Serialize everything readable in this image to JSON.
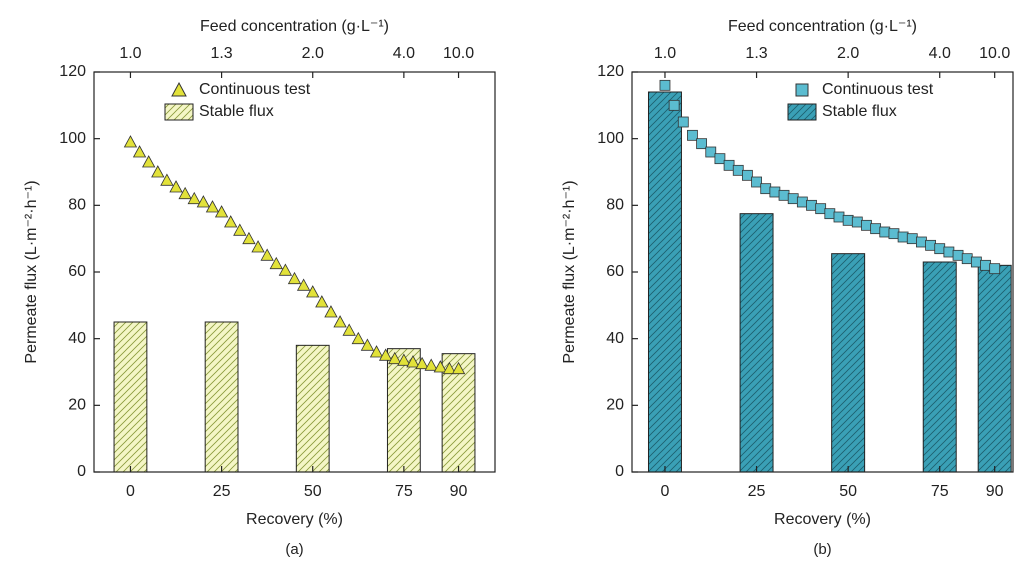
{
  "chart_data": [
    {
      "type": "bar",
      "panel_label": "(a)",
      "xlabel": "Recovery (%)",
      "ylabel": "Permeate flux (L·m⁻²·h⁻¹)",
      "x2label": "Feed concentration (g·L⁻¹)",
      "xlim": [
        -10,
        100
      ],
      "xticks": [
        0,
        25,
        50,
        75,
        90
      ],
      "x2ticks": [
        {
          "value": 0,
          "label": "1.0"
        },
        {
          "value": 25,
          "label": "1.3"
        },
        {
          "value": 50,
          "label": "2.0"
        },
        {
          "value": 75,
          "label": "4.0"
        },
        {
          "value": 90,
          "label": "10.0"
        }
      ],
      "ylim": [
        0,
        120
      ],
      "yticks": [
        0,
        20,
        40,
        60,
        80,
        100,
        120
      ],
      "series": [
        {
          "name": "Continuous test",
          "type": "scatter",
          "marker": "triangle",
          "color": "#e2e23a",
          "x": [
            0,
            2.5,
            5,
            7.5,
            10,
            12.5,
            15,
            17.5,
            20,
            22.5,
            25,
            27.5,
            30,
            32.5,
            35,
            37.5,
            40,
            42.5,
            45,
            47.5,
            50,
            52.5,
            55,
            57.5,
            60,
            62.5,
            65,
            67.5,
            70,
            72.5,
            75,
            77.5,
            80,
            82.5,
            85,
            87.5,
            90
          ],
          "values": [
            99,
            96,
            93,
            90,
            87.5,
            85.5,
            83.5,
            82,
            81,
            79.5,
            78,
            75,
            72.5,
            70,
            67.5,
            65,
            62.5,
            60.5,
            58,
            56,
            54,
            51,
            48,
            45,
            42.5,
            40,
            38,
            36,
            35,
            34,
            33.5,
            33,
            32.5,
            32,
            31.5,
            31,
            31
          ]
        },
        {
          "name": "Stable flux",
          "type": "bar",
          "color": "#f4f6c6",
          "hatch": "#8a9a3a",
          "x": [
            0,
            25,
            50,
            75,
            90
          ],
          "values": [
            45,
            45,
            38,
            37,
            35.5
          ]
        }
      ]
    },
    {
      "type": "bar",
      "panel_label": "(b)",
      "xlabel": "Recovery (%)",
      "ylabel": "Permeate flux (L·m⁻²·h⁻¹)",
      "x2label": "Feed concentration (g·L⁻¹)",
      "xlim": [
        -9,
        95
      ],
      "xticks": [
        0,
        25,
        50,
        75,
        90
      ],
      "x2ticks": [
        {
          "value": 0,
          "label": "1.0"
        },
        {
          "value": 25,
          "label": "1.3"
        },
        {
          "value": 50,
          "label": "2.0"
        },
        {
          "value": 75,
          "label": "4.0"
        },
        {
          "value": 90,
          "label": "10.0"
        }
      ],
      "ylim": [
        0,
        120
      ],
      "yticks": [
        0,
        20,
        40,
        60,
        80,
        100,
        120
      ],
      "series": [
        {
          "name": "Continuous test",
          "type": "scatter",
          "marker": "square",
          "color": "#5bbcd0",
          "x": [
            0,
            2.5,
            5,
            7.5,
            10,
            12.5,
            15,
            17.5,
            20,
            22.5,
            25,
            27.5,
            30,
            32.5,
            35,
            37.5,
            40,
            42.5,
            45,
            47.5,
            50,
            52.5,
            55,
            57.5,
            60,
            62.5,
            65,
            67.5,
            70,
            72.5,
            75,
            77.5,
            80,
            82.5,
            85,
            87.5,
            90
          ],
          "values": [
            116,
            110,
            105,
            101,
            98.5,
            96,
            94,
            92,
            90.5,
            89,
            87,
            85,
            84,
            83,
            82,
            81,
            80,
            79,
            77.5,
            76.5,
            75.5,
            75,
            74,
            73,
            72,
            71.5,
            70.5,
            70,
            69,
            68,
            67,
            66,
            65,
            64,
            63,
            62,
            61
          ]
        },
        {
          "name": "Stable flux",
          "type": "bar",
          "color": "#3aa0b6",
          "hatch": "#1c5f6e",
          "x": [
            0,
            25,
            50,
            75,
            90
          ],
          "values": [
            114,
            77.5,
            65.5,
            63,
            62
          ]
        }
      ]
    }
  ]
}
